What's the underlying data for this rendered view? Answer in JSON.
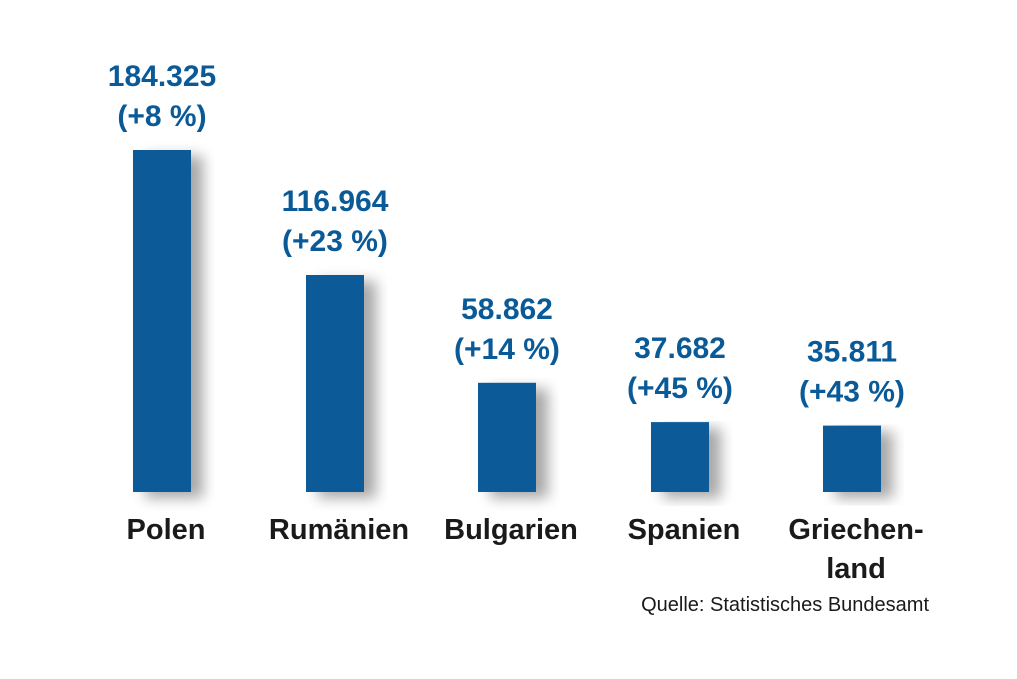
{
  "chart_data": {
    "type": "bar",
    "title": "",
    "xlabel": "",
    "ylabel": "",
    "ylim": [
      0,
      184325
    ],
    "grid": false,
    "legend": "none",
    "bar_color": "#0a5a98",
    "categories": [
      [
        "Polen"
      ],
      [
        "Rumänien"
      ],
      [
        "Bulgarien"
      ],
      [
        "Spanien"
      ],
      [
        "Griechen-",
        "land"
      ]
    ],
    "values": [
      184325,
      116964,
      58862,
      37682,
      35811
    ],
    "value_labels": [
      "184.325",
      "116.964",
      "58.862",
      "37.682",
      "35.811"
    ],
    "change_labels": [
      "(+8 %)",
      "(+23 %)",
      "(+14 %)",
      "(+45 %)",
      "(+43 %)"
    ]
  },
  "source": "Quelle: Statistisches Bundesamt"
}
